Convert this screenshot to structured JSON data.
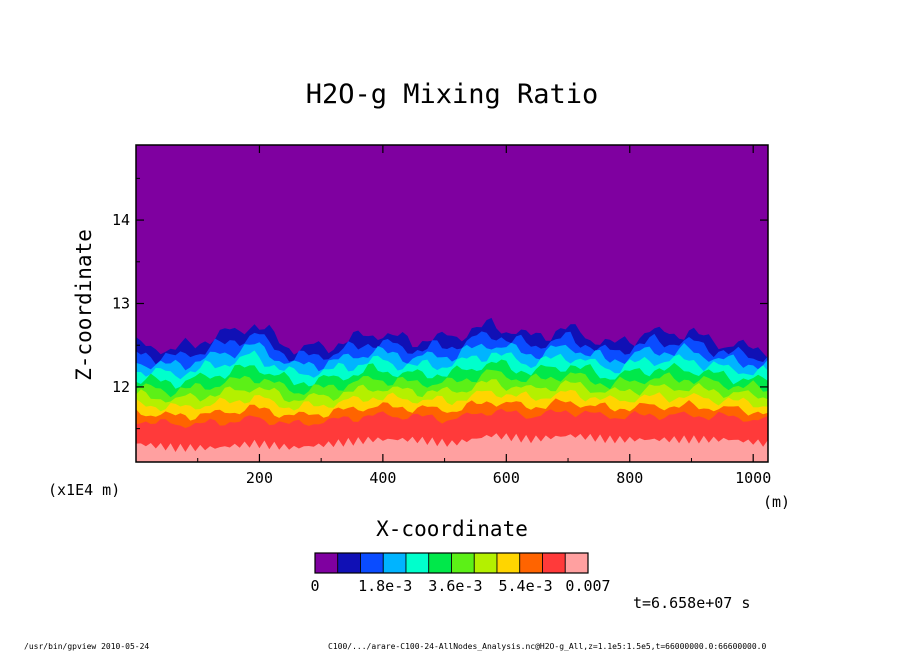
{
  "chart_data": {
    "type": "heatmap",
    "title": "H2O-g Mixing Ratio",
    "xlabel": "X-coordinate",
    "ylabel": "Z-coordinate",
    "x_unit": "(m)",
    "y_unit": "(x1E4 m)",
    "xlim": [
      0,
      1024
    ],
    "ylim": [
      11.1,
      14.9
    ],
    "x_ticks": [
      200,
      400,
      600,
      800,
      1000
    ],
    "y_ticks": [
      12,
      13,
      14
    ],
    "colorbar": {
      "colors": [
        "#7f00a0",
        "#1010b5",
        "#0a4cff",
        "#00b4ff",
        "#00ffcc",
        "#00e84a",
        "#5cf017",
        "#b4f000",
        "#ffd500",
        "#ff6400",
        "#ff3a3a",
        "#ffa0a0"
      ],
      "tick_labels": [
        "0",
        "1.8e-3",
        "3.6e-3",
        "5.4e-3",
        "0.007"
      ],
      "tick_values": [
        0,
        0.0018,
        0.0036,
        0.0054,
        0.007
      ],
      "min": 0,
      "max": 0.007
    },
    "contour_profile": {
      "x": [
        0,
        64,
        128,
        192,
        256,
        320,
        384,
        448,
        512,
        576,
        640,
        704,
        768,
        832,
        896,
        960,
        1024
      ],
      "upper_boundary": [
        12.5,
        12.45,
        12.6,
        12.75,
        12.45,
        12.5,
        12.65,
        12.55,
        12.6,
        12.75,
        12.6,
        12.7,
        12.5,
        12.65,
        12.65,
        12.5,
        12.45
      ],
      "bottom_band_top": [
        11.5,
        11.45,
        11.45,
        11.5,
        11.45,
        11.5,
        11.55,
        11.55,
        11.5,
        11.6,
        11.55,
        11.6,
        11.55,
        11.55,
        11.55,
        11.55,
        11.5
      ]
    },
    "grid": false,
    "legend": "bottom"
  },
  "time_label": "t=6.658e+07 s",
  "footer": {
    "left": "/usr/bin/gpview  2010-05-24",
    "right": "C100/.../arare-C100-24-AllNodes_Analysis.nc@H2O-g_All,z=1.1e5:1.5e5,t=66000000.0:66600000.0"
  }
}
